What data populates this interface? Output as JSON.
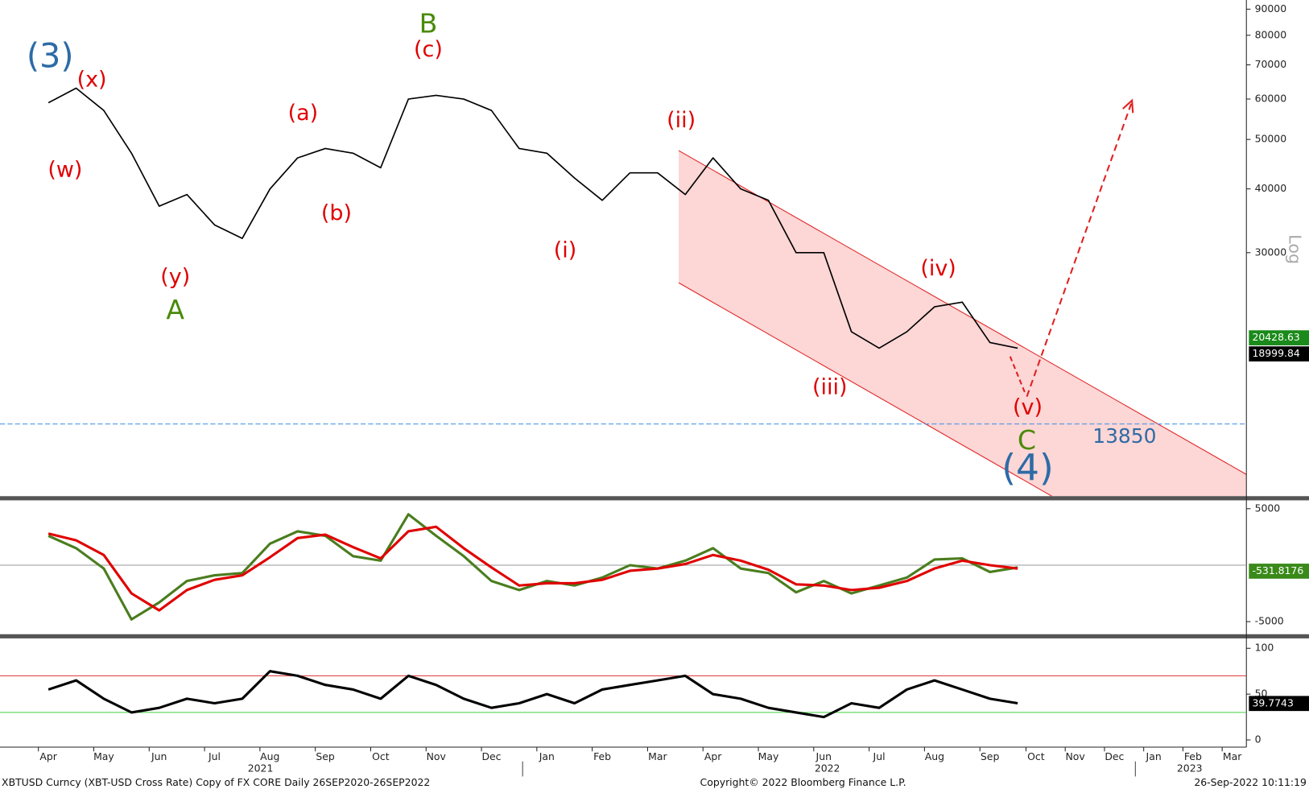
{
  "chart_data": [
    {
      "type": "line",
      "log_scale": true,
      "y_axis_label": "Log",
      "color": "#000000",
      "categories": [
        "Apr",
        null,
        "May",
        null,
        "Jun",
        null,
        "Jul",
        null,
        "Aug",
        null,
        "Sep",
        null,
        "Oct",
        null,
        "Nov",
        null,
        "Dec",
        null,
        "Jan",
        null,
        "Feb",
        null,
        "Mar",
        null,
        "Apr",
        null,
        "May",
        null,
        "Jun",
        null,
        "Jul",
        null,
        "Aug",
        null,
        "Sep",
        null,
        "Oct",
        null,
        "Nov",
        null,
        "Dec",
        null,
        "Jan",
        null,
        "Feb",
        null,
        "Mar",
        null
      ],
      "years": [
        "2021",
        "2022",
        "2023"
      ],
      "values": [
        59000,
        63000,
        57000,
        47000,
        37000,
        39000,
        34000,
        32000,
        40000,
        46000,
        48000,
        47000,
        44000,
        60000,
        61000,
        60000,
        57000,
        48000,
        47000,
        42000,
        38000,
        43000,
        43000,
        39000,
        46000,
        40000,
        38000,
        30000,
        30000,
        21000,
        19500,
        21000,
        23500,
        24000,
        20000,
        19500,
        null,
        null,
        null,
        null,
        null,
        null,
        null,
        null,
        null,
        null,
        null,
        null
      ],
      "ylim": [
        10000,
        93800
      ],
      "yticks": [
        30000,
        40000,
        50000,
        60000,
        70000,
        80000,
        90000
      ],
      "level": 13850,
      "level_color": "#3a8ee6",
      "last_values": [
        20428.63,
        18999.84
      ],
      "last_value_colors": [
        "#1a8a1a",
        "#000000"
      ],
      "annotations": [
        {
          "text": "(3)",
          "color": "#2d6ba6"
        },
        {
          "text": "(x)",
          "color": "#e00000"
        },
        {
          "text": "(w)",
          "color": "#e00000"
        },
        {
          "text": "(y)",
          "color": "#e00000"
        },
        {
          "text": "A",
          "color": "#4a8a0a"
        },
        {
          "text": "(a)",
          "color": "#e00000"
        },
        {
          "text": "(b)",
          "color": "#e00000"
        },
        {
          "text": "B",
          "color": "#4a8a0a"
        },
        {
          "text": "(c)",
          "color": "#e00000"
        },
        {
          "text": "(ii)",
          "color": "#e00000"
        },
        {
          "text": "(i)",
          "color": "#e00000"
        },
        {
          "text": "(iii)",
          "color": "#e00000"
        },
        {
          "text": "(iv)",
          "color": "#e00000"
        },
        {
          "text": "(v)",
          "color": "#e00000"
        },
        {
          "text": "C",
          "color": "#4a8a0a"
        },
        {
          "text": "(4)",
          "color": "#2d6ba6"
        }
      ]
    },
    {
      "type": "line",
      "ylim": [
        -6040,
        5740
      ],
      "yticks": [
        -5000,
        5000
      ],
      "last_value": -531.8176,
      "last_value_color": "#3a8a1a",
      "series": [
        {
          "color": "#4a7d1e",
          "values": [
            2600,
            1500,
            -300,
            -4800,
            -3300,
            -1400,
            -900,
            -700,
            1900,
            3000,
            2600,
            800,
            400,
            4500,
            2600,
            800,
            -1400,
            -2200,
            -1400,
            -1800,
            -1100,
            0,
            -300,
            400,
            1500,
            -300,
            -700,
            -2400,
            -1400,
            -2500,
            -1800,
            -1100,
            500,
            600,
            -600,
            -200,
            null,
            null,
            null,
            null,
            null,
            null,
            null,
            null,
            null,
            null,
            null,
            null
          ]
        },
        {
          "color": "#e00000",
          "values": [
            2800,
            2200,
            900,
            -2500,
            -4000,
            -2200,
            -1300,
            -900,
            700,
            2400,
            2700,
            1600,
            600,
            3000,
            3400,
            1500,
            -200,
            -1800,
            -1600,
            -1600,
            -1300,
            -500,
            -300,
            100,
            900,
            400,
            -400,
            -1700,
            -1800,
            -2200,
            -2000,
            -1400,
            -300,
            400,
            0,
            -300,
            null,
            null,
            null,
            null,
            null,
            null,
            null,
            null,
            null,
            null,
            null,
            null
          ]
        }
      ]
    },
    {
      "type": "line",
      "ylim": [
        -7,
        109
      ],
      "yticks": [
        0,
        50,
        100
      ],
      "color": "#000000",
      "last_value": 39.7743,
      "bands": [
        70,
        30
      ],
      "band_colors": [
        "#e03030",
        "#40d040"
      ],
      "values": [
        55,
        65,
        45,
        30,
        35,
        45,
        40,
        45,
        75,
        70,
        60,
        55,
        45,
        70,
        60,
        45,
        35,
        40,
        50,
        40,
        55,
        60,
        65,
        70,
        50,
        45,
        35,
        30,
        25,
        40,
        35,
        55,
        65,
        55,
        45,
        40,
        null,
        null,
        null,
        null,
        null,
        null,
        null,
        null,
        null,
        null,
        null,
        null
      ]
    }
  ],
  "footer": {
    "left": "XBTUSD Curncy (XBT-USD Cross Rate) Copy of FX CORE  Daily 26SEP2020-26SEP2022",
    "center": "Copyright© 2022 Bloomberg Finance L.P.",
    "right": "26-Sep-2022 10:11:19"
  }
}
